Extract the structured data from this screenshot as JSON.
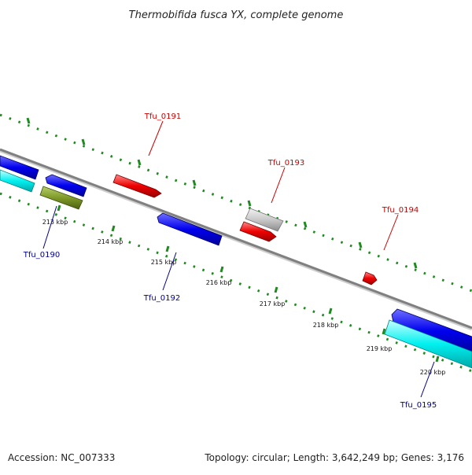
{
  "title": "Thermobifida fusca YX, complete genome",
  "footer": {
    "accession": "Accession: NC_007333",
    "summary": "Topology: circular; Length: 3,642,249 bp; Genes: 3,176"
  },
  "colors": {
    "backbone": "#8a8a8a",
    "tick": "#1f8a1f",
    "forward_label": "#cc0000",
    "reverse_label": "#00008b"
  },
  "ticks": [
    "213 kbp",
    "214 kbp",
    "215 kbp",
    "216 kbp",
    "217 kbp",
    "218 kbp",
    "219 kbp",
    "220 kbp"
  ],
  "gene_labels": [
    {
      "id": "Tfu_0191",
      "strand": "forward"
    },
    {
      "id": "Tfu_0193",
      "strand": "forward"
    },
    {
      "id": "Tfu_0194",
      "strand": "forward"
    },
    {
      "id": "Tfu_0190",
      "strand": "reverse"
    },
    {
      "id": "Tfu_0192",
      "strand": "reverse"
    },
    {
      "id": "Tfu_0195",
      "strand": "reverse"
    }
  ]
}
